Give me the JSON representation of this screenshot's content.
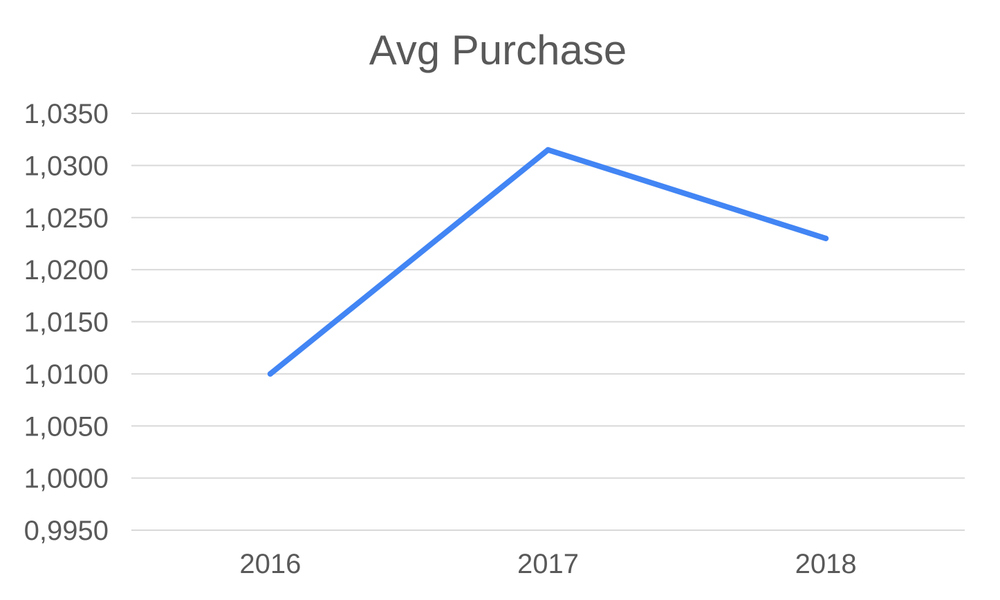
{
  "chart_data": {
    "type": "line",
    "title": "Avg Purchase",
    "xlabel": "",
    "ylabel": "",
    "categories": [
      "2016",
      "2017",
      "2018"
    ],
    "series": [
      {
        "values": [
          1.01,
          1.0315,
          1.023
        ],
        "color": "#4285f4"
      }
    ],
    "ylim": [
      0.995,
      1.035
    ],
    "yticks": [
      {
        "value": 1.035,
        "label": "1,0350"
      },
      {
        "value": 1.03,
        "label": "1,0300"
      },
      {
        "value": 1.025,
        "label": "1,0250"
      },
      {
        "value": 1.02,
        "label": "1,0200"
      },
      {
        "value": 1.015,
        "label": "1,0150"
      },
      {
        "value": 1.01,
        "label": "1,0100"
      },
      {
        "value": 1.005,
        "label": "1,0050"
      },
      {
        "value": 1.0,
        "label": "1,0000"
      },
      {
        "value": 0.995,
        "label": "0,9950"
      }
    ],
    "grid": true,
    "legend": "none"
  }
}
